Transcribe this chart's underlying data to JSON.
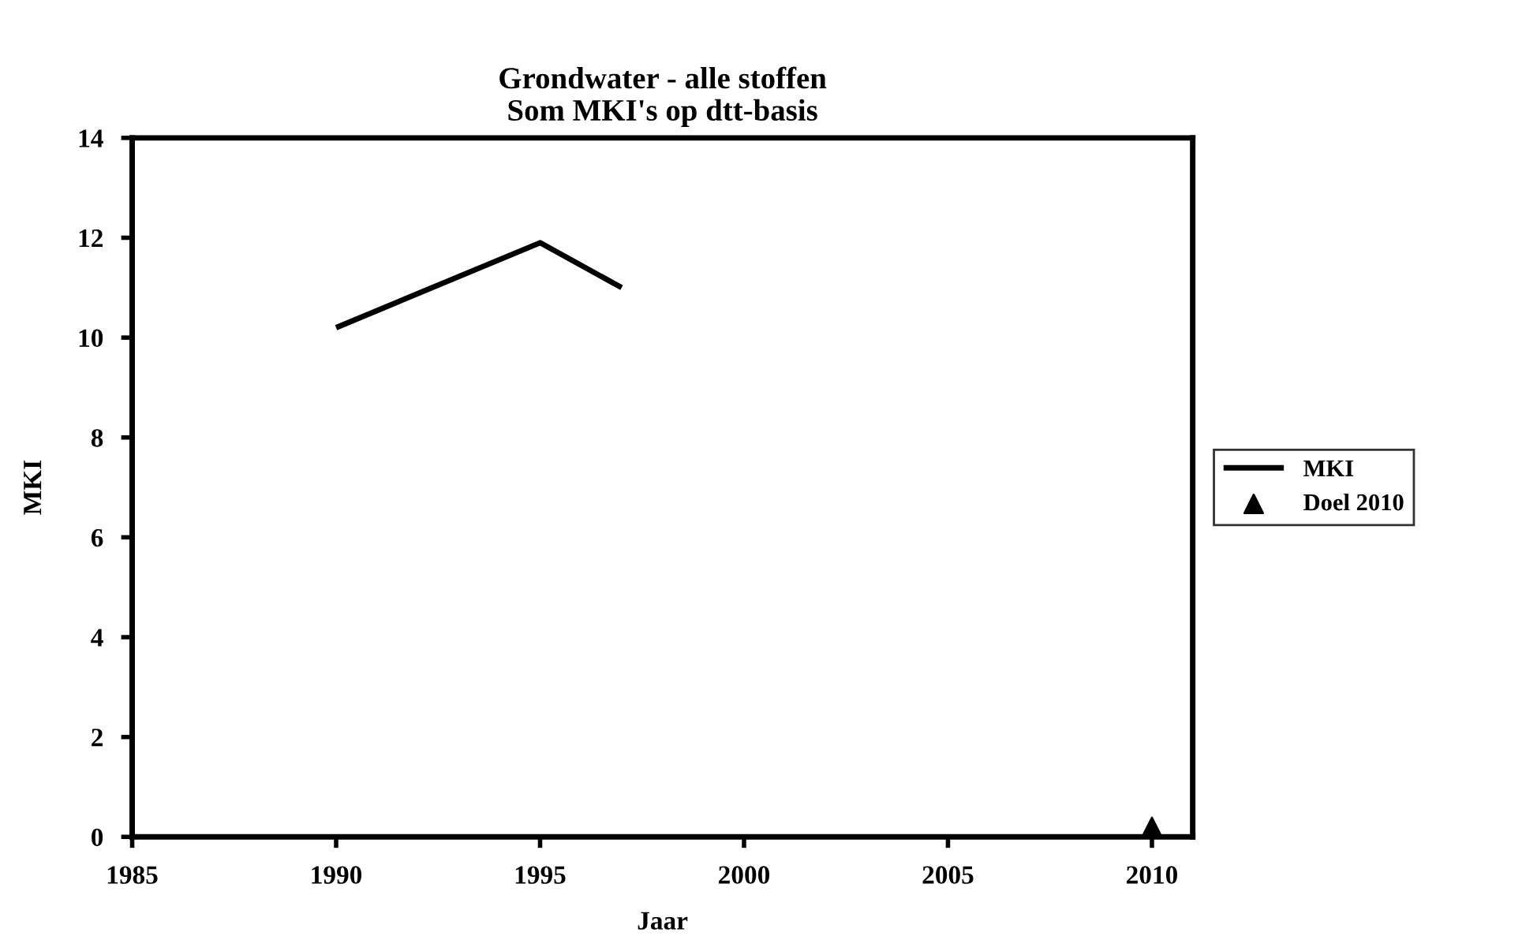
{
  "chart_data": {
    "type": "line",
    "title": "Grondwater - alle stoffen\nSom MKI's op dtt-basis",
    "xlabel": "Jaar",
    "ylabel": "MKI",
    "series": [
      {
        "name": "MKI",
        "color": "#000000",
        "marker": "none",
        "x": [
          1990,
          1995,
          1997
        ],
        "values": [
          10.2,
          11.9,
          11.0
        ]
      },
      {
        "name": "Doel 2010",
        "color": "#000000",
        "type": "scatter",
        "marker": "triangle",
        "x": [
          2010
        ],
        "values": [
          0.2
        ]
      }
    ],
    "xlim": [
      1985,
      2011
    ],
    "xticks": [
      1985,
      1990,
      1995,
      2000,
      2005,
      2010
    ],
    "ylim": [
      0,
      14
    ],
    "yticks": [
      0,
      2,
      4,
      6,
      8,
      10,
      12,
      14
    ],
    "grid": false,
    "legend": "right"
  }
}
